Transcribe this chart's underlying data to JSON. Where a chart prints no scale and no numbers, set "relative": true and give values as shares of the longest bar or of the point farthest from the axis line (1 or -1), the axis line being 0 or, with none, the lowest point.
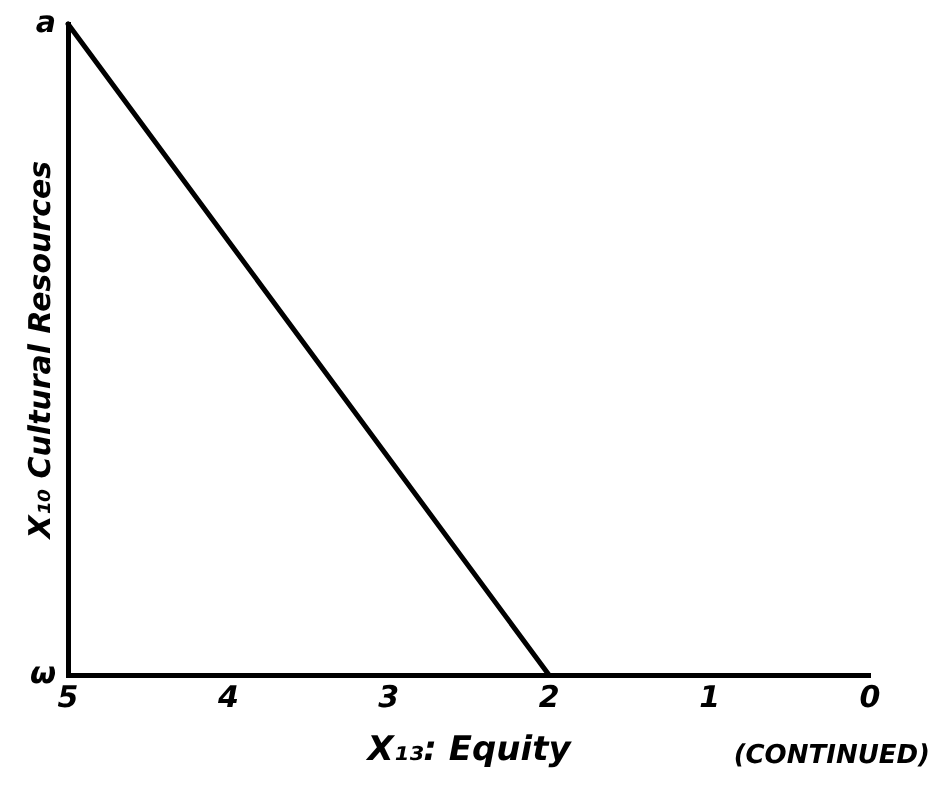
{
  "chart_data": {
    "type": "line",
    "xlabel": "X₁₃: Equity",
    "ylabel": "X₁₀ Cultural Resources",
    "annotations": [
      "a",
      "ω",
      "(CONTINUED)"
    ],
    "relative": true,
    "x": [
      5,
      2
    ],
    "series": [
      {
        "color": "#000000",
        "values": [
          1,
          0
        ]
      }
    ],
    "xlim": [
      5,
      0
    ],
    "xticks": [
      5,
      4,
      3,
      2,
      1,
      0
    ],
    "grid": false,
    "legend": false,
    "marker": "none",
    "line_style": "solid"
  }
}
